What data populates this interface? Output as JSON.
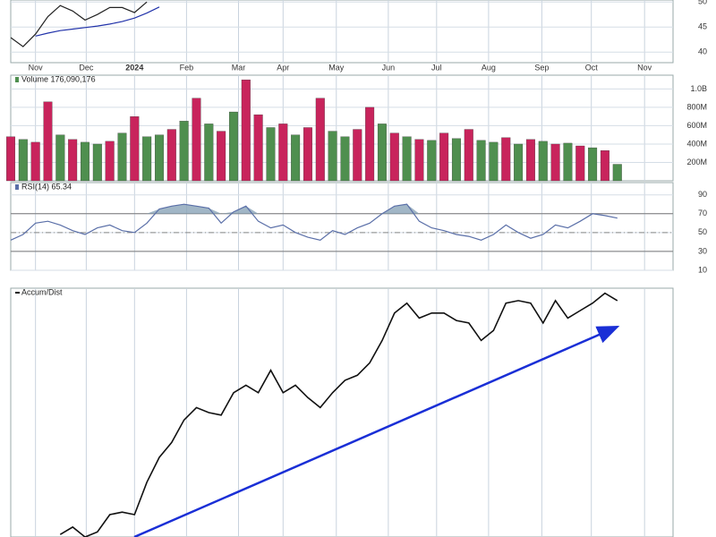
{
  "chart_data": [
    {
      "type": "line",
      "xlim": [
        0,
        53.5
      ],
      "xticks": [
        {
          "value": 2.0,
          "label": "Nov"
        },
        {
          "value": 6.1,
          "label": "Dec"
        },
        {
          "value": 10.0,
          "label": "2024"
        },
        {
          "value": 14.2,
          "label": "Feb"
        },
        {
          "value": 18.4,
          "label": "Mar"
        },
        {
          "value": 22.0,
          "label": "Apr"
        },
        {
          "value": 26.3,
          "label": "May"
        },
        {
          "value": 30.5,
          "label": "Jun"
        },
        {
          "value": 34.4,
          "label": "Jul"
        },
        {
          "value": 38.6,
          "label": "Aug"
        },
        {
          "value": 42.9,
          "label": "Sep"
        },
        {
          "value": 46.9,
          "label": "Oct"
        },
        {
          "value": 51.2,
          "label": "Nov"
        }
      ],
      "ylim": [
        37.9,
        50.4
      ],
      "yticks": [
        40,
        45,
        50
      ],
      "grid": true,
      "series": [
        {
          "color": "#222222",
          "values": [
            42.9,
            41.1,
            43.6,
            47.1,
            49.3,
            48.2,
            46.4,
            47.5,
            48.9,
            48.9,
            47.9,
            50.0,
            null,
            null,
            null,
            null,
            null,
            null,
            null,
            null,
            null,
            null,
            null,
            null,
            null,
            null,
            null,
            null,
            null,
            null,
            null,
            null,
            null,
            null,
            null,
            null,
            null,
            null,
            null,
            null,
            null,
            null,
            null,
            null,
            null,
            null,
            null,
            null,
            null,
            null
          ]
        },
        {
          "color": "#2233aa",
          "values": [
            null,
            null,
            43.2,
            43.8,
            44.3,
            44.6,
            44.9,
            45.2,
            45.6,
            46.1,
            46.8,
            47.8,
            49.0,
            null,
            null,
            null,
            null,
            null,
            null,
            null,
            null,
            null,
            null,
            null,
            null,
            null,
            null,
            null,
            null,
            null,
            null,
            null,
            null,
            null,
            null,
            null,
            null,
            null,
            null,
            null,
            null,
            null,
            null,
            null,
            null,
            null,
            null,
            null,
            null,
            null
          ]
        }
      ]
    },
    {
      "type": "bar",
      "title": "Volume 176,090,176",
      "xlim": [
        0,
        53.5
      ],
      "ylim": [
        0,
        1150
      ],
      "yticks": [
        {
          "value": 200,
          "label": "200M"
        },
        {
          "value": 400,
          "label": "400M"
        },
        {
          "value": 600,
          "label": "600M"
        },
        {
          "value": 800,
          "label": "800M"
        },
        {
          "value": 1000,
          "label": "1.0B"
        }
      ],
      "grid": true,
      "values": [
        480,
        450,
        420,
        860,
        500,
        450,
        420,
        400,
        430,
        520,
        700,
        480,
        500,
        560,
        650,
        900,
        620,
        540,
        750,
        1100,
        720,
        580,
        620,
        500,
        580,
        900,
        540,
        480,
        560,
        800,
        620,
        520,
        480,
        450,
        440,
        520,
        460,
        560,
        440,
        420,
        470,
        400,
        450,
        430,
        400,
        410,
        380,
        360,
        330,
        180
      ],
      "colors": [
        "#c8245c",
        "#4f8f4f",
        "#c8245c",
        "#c8245c",
        "#4f8f4f",
        "#c8245c",
        "#4f8f4f",
        "#4f8f4f",
        "#c8245c",
        "#4f8f4f",
        "#c8245c",
        "#4f8f4f",
        "#4f8f4f",
        "#c8245c",
        "#4f8f4f",
        "#c8245c",
        "#4f8f4f",
        "#c8245c",
        "#4f8f4f",
        "#c8245c",
        "#c8245c",
        "#4f8f4f",
        "#c8245c",
        "#4f8f4f",
        "#c8245c",
        "#c8245c",
        "#4f8f4f",
        "#4f8f4f",
        "#c8245c",
        "#c8245c",
        "#4f8f4f",
        "#c8245c",
        "#4f8f4f",
        "#c8245c",
        "#4f8f4f",
        "#c8245c",
        "#4f8f4f",
        "#c8245c",
        "#4f8f4f",
        "#4f8f4f",
        "#c8245c",
        "#4f8f4f",
        "#c8245c",
        "#4f8f4f",
        "#c8245c",
        "#4f8f4f",
        "#c8245c",
        "#4f8f4f",
        "#c8245c",
        "#4f8f4f"
      ]
    },
    {
      "type": "line",
      "title": "RSI(14) 65.34",
      "xlim": [
        0,
        53.5
      ],
      "ylim": [
        10,
        103
      ],
      "yticks": [
        10,
        30,
        50,
        70,
        90
      ],
      "grid": true,
      "ref_lines": [
        30,
        70
      ],
      "mid_line": 50,
      "fill_above": 70,
      "fill_color": "#8aa4b8",
      "series": [
        {
          "color": "#5a6fa8",
          "values": [
            42,
            48,
            60,
            62,
            58,
            52,
            48,
            55,
            58,
            52,
            50,
            60,
            75,
            78,
            80,
            78,
            76,
            60,
            72,
            78,
            62,
            55,
            58,
            50,
            45,
            42,
            52,
            48,
            55,
            60,
            70,
            78,
            80,
            62,
            55,
            52,
            48,
            46,
            42,
            48,
            58,
            50,
            44,
            48,
            58,
            55,
            62,
            70,
            68,
            65.34
          ]
        }
      ]
    },
    {
      "type": "line",
      "title": "Accum/Dist",
      "xlim": [
        0,
        53.5
      ],
      "ylim": [
        0,
        100
      ],
      "grid": true,
      "series": [
        {
          "color": "#111111",
          "values": [
            null,
            null,
            null,
            null,
            1,
            4,
            0,
            2,
            9,
            10,
            9,
            22,
            32,
            38,
            47,
            52,
            50,
            49,
            58,
            61,
            58,
            67,
            58,
            61,
            56,
            52,
            58,
            63,
            65,
            70,
            79,
            90,
            94,
            88,
            90,
            90,
            87,
            86,
            79,
            83,
            94,
            95,
            94,
            86,
            95,
            88,
            91,
            94,
            98,
            95
          ]
        }
      ]
    }
  ]
}
